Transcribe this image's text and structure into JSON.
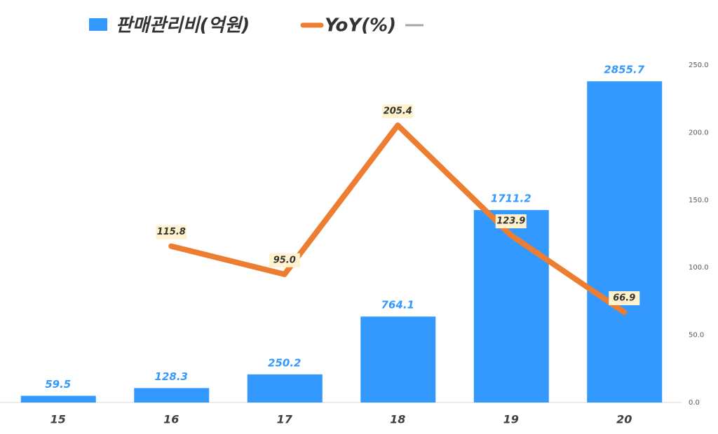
{
  "chart_data": {
    "type": "combo",
    "categories": [
      "15",
      "16",
      "17",
      "18",
      "19",
      "20"
    ],
    "series": [
      {
        "name": "판매관리비(억원)",
        "type": "bar",
        "color": "#3399ff",
        "values": [
          59.5,
          128.3,
          250.2,
          764.1,
          1711.2,
          2855.7
        ]
      },
      {
        "name": "YoY(%)",
        "type": "line",
        "axis": "y2",
        "color": "#ed7d31",
        "values": [
          null,
          115.8,
          95.0,
          205.4,
          123.9,
          66.9
        ],
        "value_labels": [
          null,
          "115.8",
          "95.0",
          "205.4",
          "123.9",
          "66.9"
        ]
      }
    ],
    "ylim": [
      0,
      3000
    ],
    "y2lim": [
      0,
      250
    ],
    "y2ticks": [
      {
        "value": 0,
        "label": "0.0"
      },
      {
        "value": 50,
        "label": "50.0"
      },
      {
        "value": 100,
        "label": "100.0"
      },
      {
        "value": 150,
        "label": "150.0"
      },
      {
        "value": 200,
        "label": "200.0"
      },
      {
        "value": 250,
        "label": "250.0"
      }
    ],
    "legend": "top"
  }
}
